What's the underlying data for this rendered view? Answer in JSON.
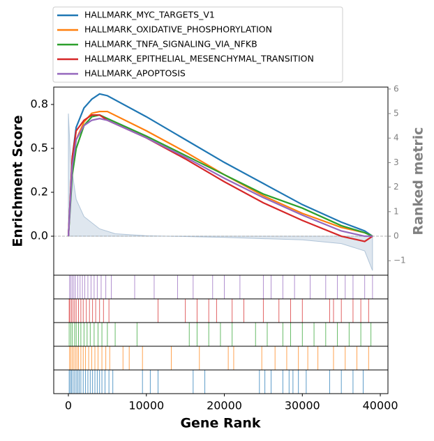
{
  "chart_data": {
    "type": "line",
    "xlabel": "Gene Rank",
    "ylabel": "Enrichment Score",
    "y2label": "Ranked metric",
    "xlim": [
      -1880,
      40980
    ],
    "xticks": [
      0,
      10000,
      20000,
      30000,
      40000
    ],
    "ylim": [
      -0.222,
      0.849
    ],
    "yticks": [
      {
        "value": 0,
        "label": "0.0"
      },
      {
        "value": 0.25,
        "label": "0.2"
      },
      {
        "value": 0.5,
        "label": "0.5"
      },
      {
        "value": 0.75,
        "label": "0.8"
      }
    ],
    "y2lim": [
      -1.59,
      6.08
    ],
    "y2ticks": [
      {
        "value": -1,
        "label": "−1"
      },
      0,
      1,
      2,
      3,
      4,
      5,
      6
    ],
    "legend": "top",
    "x": [
      0,
      500,
      1000,
      2000,
      3000,
      4000,
      5000,
      10000,
      15000,
      20000,
      25000,
      30000,
      35000,
      38000,
      39000
    ],
    "series": [
      {
        "name": "HALLMARK_MYC_TARGETS_V1",
        "color": "#1f77b4",
        "values": [
          0,
          0.45,
          0.62,
          0.73,
          0.78,
          0.81,
          0.8,
          0.68,
          0.55,
          0.42,
          0.3,
          0.18,
          0.08,
          0.03,
          0
        ],
        "hits": [
          100,
          250,
          400,
          600,
          800,
          1000,
          1200,
          1400,
          1600,
          1900,
          2200,
          2500,
          2800,
          3100,
          3400,
          3700,
          4000,
          4300,
          4700,
          5200,
          5700,
          9500,
          10500,
          11500,
          16000,
          17500,
          24500,
          25200,
          26000,
          27500,
          28300,
          28800,
          29500,
          30500,
          33500,
          35000,
          36500,
          37800
        ]
      },
      {
        "name": "HALLMARK_OXIDATIVE_PHOSPHORYLATION",
        "color": "#ff7f0e",
        "values": [
          0,
          0.4,
          0.55,
          0.65,
          0.7,
          0.71,
          0.71,
          0.6,
          0.48,
          0.35,
          0.23,
          0.13,
          0.05,
          0.02,
          0
        ],
        "hits": [
          150,
          300,
          500,
          700,
          900,
          1100,
          1300,
          1600,
          1900,
          2200,
          2600,
          3000,
          3400,
          3800,
          4300,
          4800,
          5300,
          7000,
          7800,
          9500,
          13200,
          16800,
          20500,
          21200,
          24800,
          26500,
          28000,
          29500,
          30700,
          32000,
          34000,
          35500,
          37000,
          38500
        ]
      },
      {
        "name": "HALLMARK_TNFA_SIGNALING_VIA_NFKB",
        "color": "#2ca02c",
        "values": [
          0,
          0.35,
          0.5,
          0.63,
          0.68,
          0.69,
          0.67,
          0.57,
          0.46,
          0.35,
          0.24,
          0.16,
          0.06,
          0.02,
          0
        ],
        "hits": [
          100,
          300,
          500,
          800,
          1000,
          1300,
          1600,
          2000,
          2400,
          2800,
          3300,
          3800,
          4300,
          5000,
          6000,
          8800,
          15500,
          16500,
          18000,
          19500,
          21000,
          24000,
          25500,
          27500,
          28500,
          30000,
          31500,
          33000,
          34500,
          36000,
          37500,
          38800
        ]
      },
      {
        "name": "HALLMARK_EPITHELIAL_MESENCHYMAL_TRANSITION",
        "color": "#d62728",
        "values": [
          0,
          0.45,
          0.6,
          0.66,
          0.69,
          0.69,
          0.66,
          0.56,
          0.44,
          0.31,
          0.19,
          0.09,
          0,
          -0.03,
          0
        ],
        "hits": [
          100,
          200,
          400,
          600,
          800,
          1000,
          1300,
          1600,
          1900,
          2300,
          2700,
          3100,
          3500,
          4000,
          4500,
          5200,
          11500,
          15000,
          16500,
          18000,
          19000,
          21000,
          22500,
          25000,
          27000,
          28500,
          30000,
          33500,
          34000,
          35000,
          36500,
          37500,
          38500
        ]
      },
      {
        "name": "HALLMARK_APOPTOSIS",
        "color": "#9467bd",
        "values": [
          0,
          0.4,
          0.55,
          0.63,
          0.66,
          0.67,
          0.66,
          0.56,
          0.45,
          0.33,
          0.22,
          0.12,
          0.03,
          0,
          0
        ],
        "hits": [
          150,
          300,
          500,
          700,
          900,
          1200,
          1500,
          1800,
          2100,
          2500,
          2900,
          3300,
          3700,
          4200,
          4800,
          5500,
          8500,
          11000,
          14000,
          16000,
          18500,
          20000,
          22000,
          25000,
          26000,
          27500,
          29000,
          31000,
          33000,
          34500,
          35500,
          36500,
          38000,
          39000
        ]
      }
    ],
    "metric": {
      "axis": "y2",
      "color": "#b0c4d8",
      "x": [
        0,
        300,
        1000,
        2000,
        4000,
        6000,
        10000,
        20000,
        30000,
        35000,
        38000,
        39000
      ],
      "values": [
        5,
        3,
        1.5,
        0.8,
        0.3,
        0.1,
        0.02,
        -0.05,
        -0.15,
        -0.3,
        -0.6,
        -1.4
      ]
    }
  }
}
